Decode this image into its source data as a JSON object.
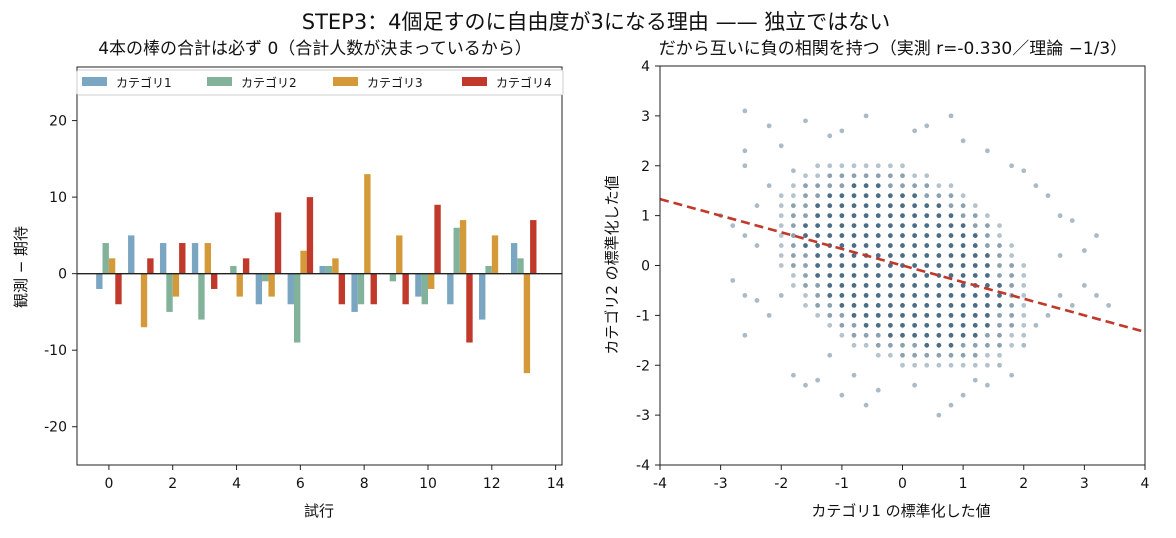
{
  "suptitle": "STEP3：4個足すのに自由度が3になる理由 —— 独立ではない",
  "chart_data": [
    {
      "type": "bar",
      "title": "4本の棒の合計は必ず 0（合計人数が決まっているから）",
      "xlabel": "試行",
      "ylabel": "観測 − 期待",
      "xlim": [
        -1,
        14.2
      ],
      "ylim": [
        -25,
        27
      ],
      "xticks": [
        "0",
        "2",
        "4",
        "6",
        "8",
        "10",
        "12",
        "14"
      ],
      "yticks": [
        "20",
        "10",
        "0",
        "-10",
        "-20"
      ],
      "legend_position": "top",
      "categories": [
        "0",
        "1",
        "2",
        "3",
        "4",
        "5",
        "6",
        "7",
        "8",
        "9",
        "10",
        "11",
        "12",
        "13"
      ],
      "series": [
        {
          "name": "カテゴリ1",
          "color": "#7aa6c2",
          "values": [
            -2,
            5,
            4,
            4,
            0,
            -4,
            -4,
            1,
            -5,
            0,
            -3,
            -4,
            -6,
            4
          ]
        },
        {
          "name": "カテゴリ2",
          "color": "#82b29a",
          "values": [
            4,
            0,
            -5,
            -6,
            1,
            -1,
            -9,
            1,
            -4,
            -1,
            -4,
            6,
            1,
            2
          ]
        },
        {
          "name": "カテゴリ3",
          "color": "#d49a3a",
          "values": [
            2,
            -7,
            -3,
            4,
            -3,
            -3,
            3,
            2,
            13,
            5,
            -2,
            7,
            5,
            -13
          ]
        },
        {
          "name": "カテゴリ4",
          "color": "#c0392b",
          "values": [
            -4,
            2,
            4,
            -2,
            2,
            8,
            10,
            -4,
            -4,
            -4,
            9,
            -9,
            0,
            7
          ]
        }
      ]
    },
    {
      "type": "scatter",
      "title": "だから互いに負の相関を持つ（実測 r=-0.330／理論 −1/3）",
      "xlabel": "カテゴリ1 の標準化した値",
      "ylabel": "カテゴリ2 の標準化した値",
      "xlim": [
        -4,
        4
      ],
      "ylim": [
        -4,
        4
      ],
      "xticks": [
        "-4",
        "-3",
        "-2",
        "-1",
        "0",
        "1",
        "2",
        "3",
        "4"
      ],
      "yticks": [
        "4",
        "3",
        "2",
        "1",
        "0",
        "-1",
        "-2",
        "-3",
        "-4"
      ],
      "point_color": "#2c5470",
      "grid_step": [
        0.2,
        0.2
      ],
      "r_observed": -0.33,
      "r_theory": "−1/3",
      "trend_line": {
        "slope": -0.333,
        "intercept": 0,
        "color": "#c0392b",
        "style": "dashed"
      },
      "sparse_points": [
        [
          -2.6,
          3.1
        ],
        [
          -2.2,
          2.8
        ],
        [
          -2.0,
          2.4
        ],
        [
          -1.6,
          2.9
        ],
        [
          -1.0,
          2.7
        ],
        [
          -0.6,
          3.0
        ],
        [
          0.2,
          2.7
        ],
        [
          0.4,
          2.8
        ],
        [
          1.0,
          2.5
        ],
        [
          1.4,
          2.3
        ],
        [
          -2.6,
          2.3
        ],
        [
          -2.6,
          2.0
        ],
        [
          -1.8,
          1.9
        ],
        [
          2.0,
          1.9
        ],
        [
          2.4,
          1.4
        ],
        [
          2.6,
          1.0
        ],
        [
          2.8,
          0.9
        ],
        [
          3.2,
          0.6
        ],
        [
          3.0,
          0.3
        ],
        [
          2.6,
          0.2
        ],
        [
          -3.0,
          1.0
        ],
        [
          -2.8,
          0.8
        ],
        [
          -2.6,
          0.6
        ],
        [
          -2.4,
          0.4
        ],
        [
          -2.8,
          -0.3
        ],
        [
          -2.6,
          -0.6
        ],
        [
          -2.4,
          -0.7
        ],
        [
          -2.6,
          -1.4
        ],
        [
          -2.2,
          -1.0
        ],
        [
          -2.0,
          -0.6
        ],
        [
          -1.8,
          -2.2
        ],
        [
          -1.4,
          -2.3
        ],
        [
          -1.2,
          -1.8
        ],
        [
          -1.0,
          -2.6
        ],
        [
          -0.8,
          -2.2
        ],
        [
          -0.4,
          -2.5
        ],
        [
          0.2,
          -2.4
        ],
        [
          0.6,
          -3.0
        ],
        [
          1.0,
          -2.6
        ],
        [
          1.2,
          -2.3
        ],
        [
          1.4,
          -2.4
        ],
        [
          1.8,
          -2.2
        ],
        [
          2.0,
          -1.6
        ],
        [
          2.2,
          -1.2
        ],
        [
          2.4,
          -1.0
        ],
        [
          2.6,
          -0.6
        ],
        [
          2.8,
          -0.8
        ],
        [
          3.0,
          -0.4
        ],
        [
          3.2,
          -0.6
        ],
        [
          3.4,
          -0.8
        ],
        [
          -1.6,
          -2.4
        ],
        [
          0.8,
          -2.8
        ],
        [
          -0.6,
          -2.8
        ],
        [
          -2.2,
          1.6
        ],
        [
          -2.4,
          1.2
        ],
        [
          1.8,
          2.0
        ],
        [
          2.2,
          1.6
        ],
        [
          -1.2,
          2.6
        ],
        [
          0.8,
          3.0
        ],
        [
          1.6,
          -2.0
        ]
      ]
    }
  ]
}
